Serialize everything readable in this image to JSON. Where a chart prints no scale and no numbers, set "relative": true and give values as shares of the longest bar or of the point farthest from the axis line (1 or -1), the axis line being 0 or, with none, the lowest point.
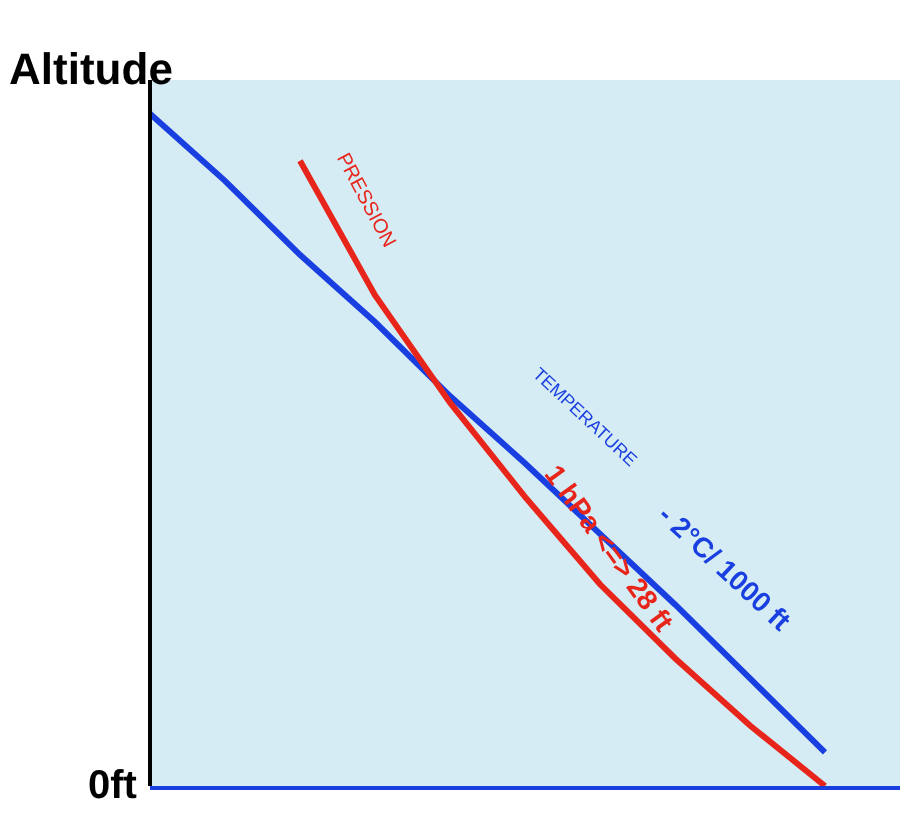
{
  "chart_data": {
    "type": "line",
    "relative": true,
    "title": "Altitude",
    "categories": [
      null,
      null,
      null,
      null,
      null,
      null,
      null,
      null,
      null,
      null,
      null
    ],
    "series": [
      {
        "color": "#1a3fe0",
        "values": [
          1.0,
          0.9,
          0.79,
          0.69,
          0.58,
          0.48,
          0.375,
          0.27,
          0.16,
          0.05,
          null
        ]
      },
      {
        "color": "#e8251a",
        "values": [
          null,
          null,
          0.93,
          0.73,
          0.57,
          0.43,
          0.3,
          0.19,
          0.09,
          0.0,
          null
        ]
      }
    ],
    "annotations": [
      "PRESSION",
      "TEMPERATURE",
      "- 2°C/ 1000 ft",
      "1 hPa <=> 28 ft",
      "0ft"
    ],
    "grid": false,
    "legend": false,
    "marker": "none",
    "line_style": "solid"
  }
}
